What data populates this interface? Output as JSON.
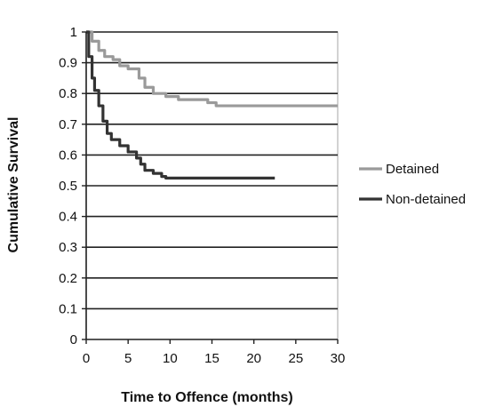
{
  "chart_data": {
    "type": "line",
    "title": "",
    "xlabel": "Time to Offence (months)",
    "ylabel": "Cumulative Survival",
    "xlim": [
      0,
      30
    ],
    "ylim": [
      0,
      1
    ],
    "x_ticks": [
      0,
      5,
      10,
      15,
      20,
      25,
      30
    ],
    "y_ticks": [
      0,
      0.1,
      0.2,
      0.3,
      0.4,
      0.5,
      0.6,
      0.7,
      0.8,
      0.9,
      1
    ],
    "x_tick_labels": [
      "0",
      "5",
      "10",
      "15",
      "20",
      "25",
      "30"
    ],
    "y_tick_labels": [
      "0",
      "0.1",
      "0.2",
      "0.3",
      "0.4",
      "0.5",
      "0.6",
      "0.7",
      "0.8",
      "0.9",
      "1"
    ],
    "grid": "horizontal",
    "legend_position": "right",
    "series": [
      {
        "name": "Detained",
        "color": "#9a9a9a",
        "step": true,
        "points": [
          [
            0,
            1.0
          ],
          [
            0.7,
            0.97
          ],
          [
            1.5,
            0.94
          ],
          [
            2.2,
            0.92
          ],
          [
            3.2,
            0.91
          ],
          [
            4.0,
            0.89
          ],
          [
            5.0,
            0.88
          ],
          [
            6.3,
            0.85
          ],
          [
            7.0,
            0.82
          ],
          [
            8.0,
            0.8
          ],
          [
            9.5,
            0.79
          ],
          [
            11.0,
            0.78
          ],
          [
            14.5,
            0.77
          ],
          [
            15.5,
            0.76
          ],
          [
            30,
            0.76
          ]
        ]
      },
      {
        "name": "Non-detained",
        "color": "#333333",
        "step": true,
        "points": [
          [
            0,
            1.0
          ],
          [
            0.3,
            0.92
          ],
          [
            0.7,
            0.85
          ],
          [
            1.0,
            0.81
          ],
          [
            1.5,
            0.76
          ],
          [
            2.0,
            0.71
          ],
          [
            2.5,
            0.67
          ],
          [
            3.0,
            0.65
          ],
          [
            4.0,
            0.63
          ],
          [
            5.0,
            0.61
          ],
          [
            6.0,
            0.59
          ],
          [
            6.5,
            0.57
          ],
          [
            7.0,
            0.55
          ],
          [
            8.0,
            0.54
          ],
          [
            9.0,
            0.53
          ],
          [
            9.5,
            0.525
          ],
          [
            22.5,
            0.525
          ]
        ]
      }
    ]
  }
}
